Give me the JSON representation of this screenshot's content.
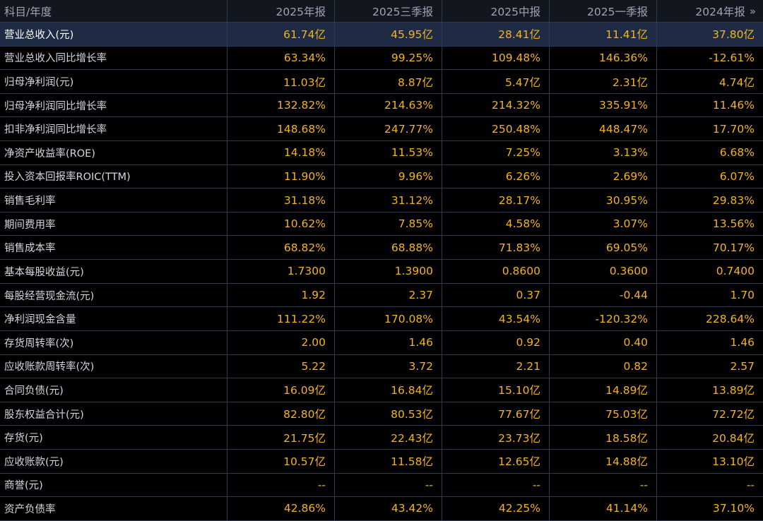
{
  "header": {
    "subject": "科目/年度",
    "periods": [
      "2025年报",
      "2025三季报",
      "2025中报",
      "2025一季报",
      "2024年报"
    ],
    "more_icon": "double-chevron-right-icon",
    "more_glyph": "»"
  },
  "colors": {
    "value": "#f3b419",
    "label": "#d3d6de",
    "header_text": "#9aa3b5",
    "selected_row": "#1f2b44",
    "grid": "#2e3a52"
  },
  "selected_row_index": 0,
  "rows": [
    {
      "label": "营业总收入(元)",
      "values": [
        "61.74亿",
        "45.95亿",
        "28.41亿",
        "11.41亿",
        "37.80亿"
      ]
    },
    {
      "label": "营业总收入同比增长率",
      "values": [
        "63.34%",
        "99.25%",
        "109.48%",
        "146.36%",
        "-12.61%"
      ]
    },
    {
      "label": "归母净利润(元)",
      "values": [
        "11.03亿",
        "8.87亿",
        "5.47亿",
        "2.31亿",
        "4.74亿"
      ]
    },
    {
      "label": "归母净利润同比增长率",
      "values": [
        "132.82%",
        "214.63%",
        "214.32%",
        "335.91%",
        "11.46%"
      ]
    },
    {
      "label": "扣非净利润同比增长率",
      "values": [
        "148.68%",
        "247.77%",
        "250.48%",
        "448.47%",
        "17.70%"
      ]
    },
    {
      "label": "净资产收益率(ROE)",
      "values": [
        "14.18%",
        "11.53%",
        "7.25%",
        "3.13%",
        "6.68%"
      ]
    },
    {
      "label": "投入资本回报率ROIC(TTM)",
      "values": [
        "11.90%",
        "9.96%",
        "6.26%",
        "2.69%",
        "6.07%"
      ]
    },
    {
      "label": "销售毛利率",
      "values": [
        "31.18%",
        "31.12%",
        "28.17%",
        "30.95%",
        "29.83%"
      ]
    },
    {
      "label": "期间费用率",
      "values": [
        "10.62%",
        "7.85%",
        "4.58%",
        "3.07%",
        "13.56%"
      ]
    },
    {
      "label": "销售成本率",
      "values": [
        "68.82%",
        "68.88%",
        "71.83%",
        "69.05%",
        "70.17%"
      ]
    },
    {
      "label": "基本每股收益(元)",
      "values": [
        "1.7300",
        "1.3900",
        "0.8600",
        "0.3600",
        "0.7400"
      ]
    },
    {
      "label": "每股经营现金流(元)",
      "values": [
        "1.92",
        "2.37",
        "0.37",
        "-0.44",
        "1.70"
      ]
    },
    {
      "label": "净利润现金含量",
      "values": [
        "111.22%",
        "170.08%",
        "43.54%",
        "-120.32%",
        "228.64%"
      ]
    },
    {
      "label": "存货周转率(次)",
      "values": [
        "2.00",
        "1.46",
        "0.92",
        "0.40",
        "1.46"
      ]
    },
    {
      "label": "应收账款周转率(次)",
      "values": [
        "5.22",
        "3.72",
        "2.21",
        "0.82",
        "2.57"
      ]
    },
    {
      "label": "合同负债(元)",
      "values": [
        "16.09亿",
        "16.84亿",
        "15.10亿",
        "14.89亿",
        "13.89亿"
      ]
    },
    {
      "label": "股东权益合计(元)",
      "values": [
        "82.80亿",
        "80.53亿",
        "77.67亿",
        "75.03亿",
        "72.72亿"
      ]
    },
    {
      "label": "存货(元)",
      "values": [
        "21.75亿",
        "22.43亿",
        "23.73亿",
        "18.58亿",
        "20.84亿"
      ]
    },
    {
      "label": "应收账款(元)",
      "values": [
        "10.57亿",
        "11.58亿",
        "12.65亿",
        "14.88亿",
        "13.10亿"
      ]
    },
    {
      "label": "商誉(元)",
      "values": [
        "--",
        "--",
        "--",
        "--",
        "--"
      ]
    },
    {
      "label": "资产负债率",
      "values": [
        "42.86%",
        "43.42%",
        "42.25%",
        "41.14%",
        "37.10%"
      ]
    }
  ]
}
